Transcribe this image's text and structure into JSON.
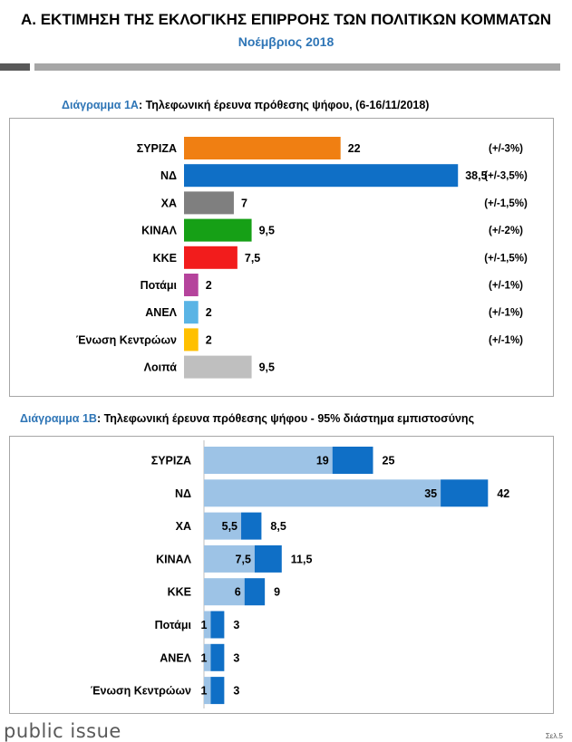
{
  "header": {
    "title": "Α. ΕΚΤΙΜΗΣΗ ΤΗΣ ΕΚΛΟΓΙΚΗΣ ΕΠΙΡΡΟΗΣ ΤΩΝ ΠΟΛΙΤΙΚΩΝ ΚΟΜΜΑΤΩΝ",
    "subtitle": "Νοέμβριος 2018"
  },
  "chart_data": [
    {
      "type": "bar",
      "orientation": "horizontal",
      "caption_label": "Διάγραμμα 1Α",
      "title": ": Τηλεφωνική έρευνα πρόθεσης ψήφου,  (6-16/11/2018)",
      "categories": [
        "ΣΥΡΙΖΑ",
        "ΝΔ",
        "ΧΑ",
        "ΚΙΝΑΛ",
        "ΚΚΕ",
        "Ποτάμι",
        "ΑΝΕΛ",
        "Ένωση Κεντρώων",
        "Λοιπά"
      ],
      "values": [
        22,
        38.5,
        7,
        9.5,
        7.5,
        2,
        2,
        2,
        9.5
      ],
      "value_labels": [
        "22",
        "38,5",
        "7",
        "9,5",
        "7,5",
        "2",
        "2",
        "2",
        "9,5"
      ],
      "margins_of_error": [
        "(+/-3%)",
        "(+/-3,5%)",
        "(+/-1,5%)",
        "(+/-2%)",
        "(+/-1,5%)",
        "(+/-1%)",
        "(+/-1%)",
        "(+/-1%)",
        ""
      ],
      "colors": [
        "#f07f12",
        "#0f6fc6",
        "#7f7f7f",
        "#16a016",
        "#f21c1c",
        "#b5439c",
        "#5ab4e5",
        "#ffc000",
        "#bfbfbf"
      ],
      "xlim": [
        0,
        40
      ],
      "grid": false
    },
    {
      "type": "bar",
      "orientation": "horizontal",
      "stacked": true,
      "caption_label": "Διάγραμμα 1Β",
      "title": ": Τηλεφωνική έρευνα πρόθεσης ψήφου - 95% διάστημα εμπιστοσύνης",
      "categories": [
        "ΣΥΡΙΖΑ",
        "ΝΔ",
        "ΧΑ",
        "ΚΙΝΑΛ",
        "ΚΚΕ",
        "Ποτάμι",
        "ΑΝΕΛ",
        "Ένωση Κεντρώων"
      ],
      "lower": [
        19,
        35,
        5.5,
        7.5,
        6,
        1,
        1,
        1
      ],
      "upper": [
        25,
        42,
        8.5,
        11.5,
        9,
        3,
        3,
        3
      ],
      "lower_labels": [
        "19",
        "35",
        "5,5",
        "7,5",
        "6",
        "1",
        "1",
        "1"
      ],
      "upper_labels": [
        "25",
        "42",
        "8,5",
        "11,5",
        "9",
        "3",
        "3",
        "3"
      ],
      "colors": {
        "lower": "#9dc3e6",
        "range": "#0f6fc6"
      },
      "xlim": [
        0,
        44
      ],
      "grid": false
    }
  ],
  "footer": {
    "brand": "public issue",
    "page": "Σελ.5"
  }
}
